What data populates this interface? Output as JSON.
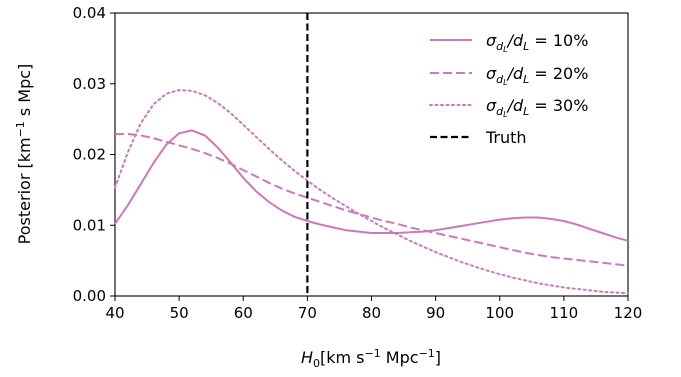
{
  "chart_data": {
    "type": "line",
    "xlabel_parts": {
      "main": "H",
      "sub": "0",
      "rest": "[km s",
      "exp": "−1",
      "rest2": " Mpc",
      "exp2": "−1",
      "close": "]"
    },
    "ylabel_parts": {
      "main": "Posterior [km",
      "exp": "−1",
      "rest": " s Mpc]"
    },
    "xlim": [
      40,
      120
    ],
    "ylim": [
      0,
      0.04
    ],
    "xticks": [
      40,
      50,
      60,
      70,
      80,
      90,
      100,
      110,
      120
    ],
    "xtick_labels": [
      "40",
      "50",
      "60",
      "70",
      "80",
      "90",
      "100",
      "110",
      "120"
    ],
    "yticks": [
      0,
      0.01,
      0.02,
      0.03,
      0.04
    ],
    "ytick_labels": [
      "0.00",
      "0.01",
      "0.02",
      "0.03",
      "0.04"
    ],
    "legend_position": "top-right",
    "truth": {
      "x": 70,
      "label": "Truth",
      "color": "#000000",
      "dash": "dashed"
    },
    "color": "#cc79b8",
    "series": [
      {
        "name_parts": [
          "σ",
          "d",
          "L",
          "/d",
          "L",
          " = 10%"
        ],
        "dash": "solid",
        "x": [
          40,
          42,
          44,
          46,
          48,
          50,
          52,
          54,
          56,
          58,
          60,
          62,
          64,
          66,
          68,
          70,
          72,
          74,
          76,
          78,
          80,
          82,
          84,
          86,
          88,
          90,
          92,
          94,
          96,
          98,
          100,
          102,
          104,
          106,
          108,
          110,
          112,
          114,
          116,
          118,
          120
        ],
        "y": [
          0.0102,
          0.0128,
          0.0158,
          0.0188,
          0.0214,
          0.023,
          0.0234,
          0.0227,
          0.021,
          0.0189,
          0.0167,
          0.0148,
          0.0133,
          0.0121,
          0.0112,
          0.0106,
          0.0101,
          0.0097,
          0.0093,
          0.0091,
          0.0089,
          0.0089,
          0.0089,
          0.009,
          0.0091,
          0.0093,
          0.0096,
          0.0099,
          0.0102,
          0.0105,
          0.0108,
          0.011,
          0.0111,
          0.0111,
          0.0109,
          0.0106,
          0.0101,
          0.0095,
          0.0089,
          0.0083,
          0.0078
        ]
      },
      {
        "name_parts": [
          "σ",
          "d",
          "L",
          "/d",
          "L",
          " = 20%"
        ],
        "dash": "dashed",
        "x": [
          40,
          42,
          44,
          46,
          48,
          50,
          52,
          54,
          56,
          58,
          60,
          62,
          64,
          66,
          68,
          70,
          72,
          74,
          76,
          78,
          80,
          82,
          84,
          86,
          88,
          90,
          92,
          94,
          96,
          98,
          100,
          102,
          104,
          106,
          108,
          110,
          112,
          114,
          116,
          118,
          120
        ],
        "y": [
          0.0229,
          0.0229,
          0.0227,
          0.0223,
          0.0218,
          0.0213,
          0.0208,
          0.0202,
          0.0195,
          0.0187,
          0.0178,
          0.0169,
          0.016,
          0.0152,
          0.0145,
          0.0139,
          0.0133,
          0.0127,
          0.0121,
          0.0116,
          0.0111,
          0.0106,
          0.0102,
          0.0097,
          0.0093,
          0.0089,
          0.0085,
          0.0081,
          0.0077,
          0.0073,
          0.0069,
          0.0065,
          0.0061,
          0.0058,
          0.0055,
          0.0053,
          0.0051,
          0.0049,
          0.0047,
          0.0045,
          0.0043
        ]
      },
      {
        "name_parts": [
          "σ",
          "d",
          "L",
          "/d",
          "L",
          " = 30%"
        ],
        "dash": "dotted",
        "x": [
          40,
          42,
          44,
          46,
          48,
          50,
          52,
          54,
          56,
          58,
          60,
          62,
          64,
          66,
          68,
          70,
          72,
          74,
          76,
          78,
          80,
          82,
          84,
          86,
          88,
          90,
          92,
          94,
          96,
          98,
          100,
          102,
          104,
          106,
          108,
          110,
          112,
          114,
          116,
          118,
          120
        ],
        "y": [
          0.0153,
          0.0203,
          0.0244,
          0.0271,
          0.0286,
          0.0291,
          0.029,
          0.0284,
          0.0273,
          0.0259,
          0.0242,
          0.0225,
          0.0208,
          0.0192,
          0.0177,
          0.0163,
          0.015,
          0.0138,
          0.0127,
          0.0116,
          0.0106,
          0.0096,
          0.0087,
          0.0078,
          0.007,
          0.0062,
          0.0055,
          0.0048,
          0.0042,
          0.0036,
          0.0031,
          0.0026,
          0.0022,
          0.0018,
          0.0015,
          0.0012,
          0.001,
          0.0008,
          0.0006,
          0.0005,
          0.0004
        ]
      }
    ]
  }
}
